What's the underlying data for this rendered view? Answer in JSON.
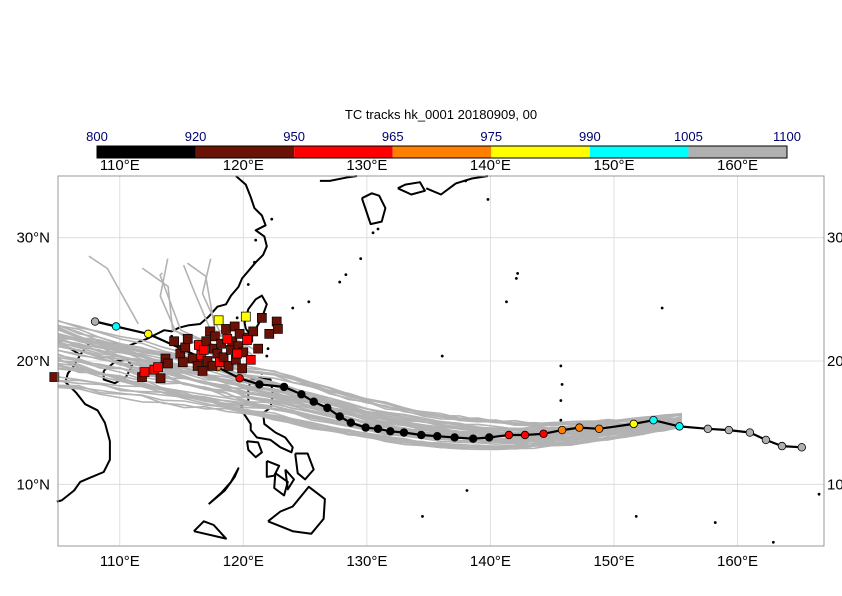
{
  "map": {
    "title": "TC tracks  hk_0001 20180909, 00",
    "extent": {
      "lon": [
        105,
        167
      ],
      "lat": [
        5,
        35
      ]
    },
    "gridlines": true,
    "lon_ticks": [
      {
        "value": 110,
        "label": "110°E"
      },
      {
        "value": 120,
        "label": "120°E"
      },
      {
        "value": 130,
        "label": "130°E"
      },
      {
        "value": 140,
        "label": "140°E"
      },
      {
        "value": 150,
        "label": "150°E"
      },
      {
        "value": 160,
        "label": "160°E"
      }
    ],
    "lat_ticks": [
      {
        "value": 10,
        "label": "10°N"
      },
      {
        "value": 20,
        "label": "20°N"
      },
      {
        "value": 30,
        "label": "30°N"
      }
    ],
    "lat_ticks_right": [
      {
        "value": 10,
        "label": "10"
      },
      {
        "value": 20,
        "label": "20"
      },
      {
        "value": 30,
        "label": "30"
      }
    ]
  },
  "colorbar": {
    "levels": [
      "800",
      "920",
      "950",
      "965",
      "975",
      "990",
      "1005",
      "1100"
    ],
    "colors": [
      "#000000",
      "#6b1206",
      "#ff0000",
      "#ff8000",
      "#ffff00",
      "#00ffff",
      "#b0b0b0"
    ],
    "label_color": "#00006e"
  },
  "colors": {
    "ensemble": "#b3b3b3",
    "land": "#000000",
    "grid": "#d9d9d9",
    "frame": "#999999"
  },
  "best_track": [
    [
      165.2,
      13.0,
      6
    ],
    [
      163.6,
      13.1,
      6
    ],
    [
      162.3,
      13.6,
      6
    ],
    [
      161.0,
      14.2,
      6
    ],
    [
      159.3,
      14.4,
      6
    ],
    [
      157.6,
      14.5,
      6
    ],
    [
      155.3,
      14.7,
      5
    ],
    [
      153.2,
      15.2,
      5
    ],
    [
      151.6,
      14.9,
      4
    ],
    [
      148.8,
      14.5,
      3
    ],
    [
      147.2,
      14.6,
      3
    ],
    [
      145.8,
      14.4,
      3
    ],
    [
      144.3,
      14.1,
      2
    ],
    [
      142.8,
      14.0,
      2
    ],
    [
      141.5,
      14.0,
      2
    ],
    [
      139.9,
      13.8,
      0
    ],
    [
      138.6,
      13.7,
      0
    ],
    [
      137.1,
      13.8,
      0
    ],
    [
      135.7,
      13.9,
      0
    ],
    [
      134.4,
      14.0,
      0
    ],
    [
      133.0,
      14.2,
      0
    ],
    [
      131.9,
      14.3,
      0
    ],
    [
      130.9,
      14.5,
      0
    ],
    [
      129.9,
      14.6,
      0
    ],
    [
      128.7,
      15.0,
      0
    ],
    [
      127.8,
      15.5,
      0
    ],
    [
      126.8,
      16.2,
      0
    ],
    [
      125.7,
      16.7,
      0
    ],
    [
      124.7,
      17.3,
      0
    ],
    [
      123.3,
      17.9,
      0
    ],
    [
      121.3,
      18.1,
      0
    ],
    [
      119.7,
      18.6,
      2
    ],
    [
      117.9,
      19.5,
      3
    ],
    [
      116.5,
      20.3,
      2
    ],
    [
      115.0,
      21.0,
      1
    ],
    [
      112.3,
      22.2,
      4
    ],
    [
      109.7,
      22.8,
      5
    ],
    [
      108.0,
      23.2,
      6
    ]
  ],
  "forecast_positions": [
    [
      104.7,
      18.7,
      1
    ],
    [
      111.8,
      18.7,
      1
    ],
    [
      112.0,
      19.1,
      2
    ],
    [
      112.8,
      19.3,
      2
    ],
    [
      113.3,
      18.6,
      1
    ],
    [
      113.7,
      20.2,
      1
    ],
    [
      113.9,
      19.8,
      1
    ],
    [
      114.4,
      21.6,
      1
    ],
    [
      114.9,
      20.6,
      1
    ],
    [
      115.3,
      21.1,
      1
    ],
    [
      115.5,
      21.8,
      1
    ],
    [
      115.9,
      20.2,
      1
    ],
    [
      116.3,
      19.6,
      1
    ],
    [
      116.4,
      21.3,
      2
    ],
    [
      116.6,
      20.5,
      2
    ],
    [
      116.7,
      19.2,
      1
    ],
    [
      116.8,
      20.9,
      2
    ],
    [
      117.0,
      21.6,
      1
    ],
    [
      117.1,
      20.0,
      1
    ],
    [
      117.3,
      22.4,
      1
    ],
    [
      117.5,
      19.6,
      1
    ],
    [
      117.6,
      21.0,
      1
    ],
    [
      117.7,
      22.0,
      1
    ],
    [
      117.9,
      20.6,
      1
    ],
    [
      118.0,
      23.3,
      4
    ],
    [
      118.1,
      19.9,
      2
    ],
    [
      118.2,
      21.4,
      1
    ],
    [
      118.4,
      20.3,
      1
    ],
    [
      118.6,
      22.6,
      1
    ],
    [
      118.8,
      19.6,
      1
    ],
    [
      119.0,
      20.9,
      1
    ],
    [
      119.1,
      21.6,
      1
    ],
    [
      119.3,
      22.8,
      1
    ],
    [
      119.4,
      20.1,
      1
    ],
    [
      119.6,
      21.2,
      1
    ],
    [
      119.7,
      22.2,
      1
    ],
    [
      119.9,
      19.4,
      1
    ],
    [
      120.0,
      20.7,
      1
    ],
    [
      120.2,
      23.6,
      4
    ],
    [
      120.4,
      21.9,
      1
    ],
    [
      120.6,
      20.1,
      2
    ],
    [
      120.8,
      22.4,
      1
    ],
    [
      121.2,
      21.0,
      1
    ],
    [
      121.5,
      23.5,
      1
    ],
    [
      122.1,
      22.2,
      1
    ],
    [
      122.7,
      23.2,
      1
    ],
    [
      122.8,
      22.6,
      1
    ],
    [
      120.3,
      21.7,
      2
    ],
    [
      119.5,
      20.6,
      2
    ],
    [
      113.1,
      19.5,
      2
    ],
    [
      118.7,
      21.8,
      2
    ],
    [
      115.1,
      19.9,
      1
    ]
  ]
}
